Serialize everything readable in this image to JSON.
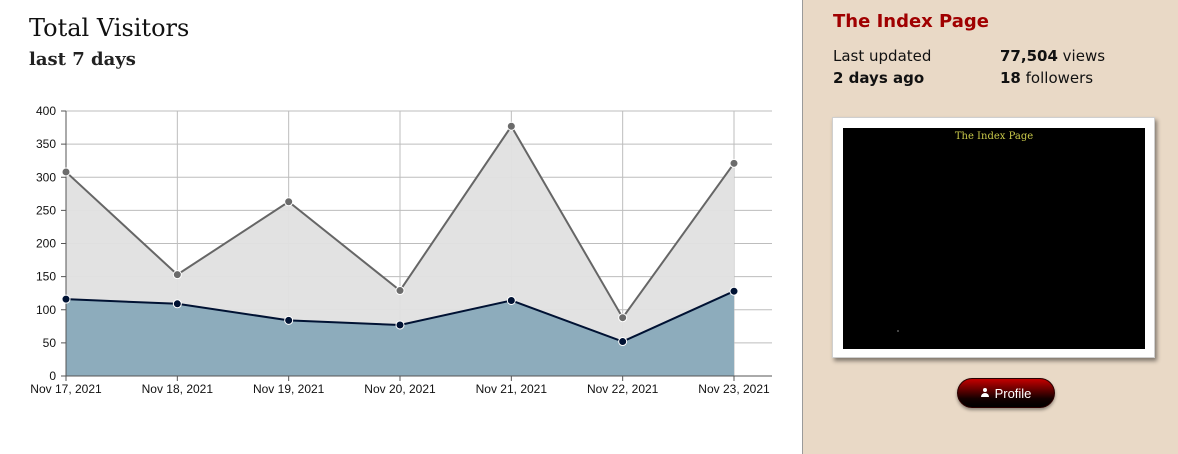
{
  "chart_data": {
    "type": "area",
    "title": "Total Visitors",
    "subtitle": "last 7 days",
    "xlabel": "",
    "ylabel": "",
    "categories": [
      "Nov 17, 2021",
      "Nov 18, 2021",
      "Nov 19, 2021",
      "Nov 20, 2021",
      "Nov 21, 2021",
      "Nov 22, 2021",
      "Nov 23, 2021"
    ],
    "series": [
      {
        "values": [
          308,
          153,
          263,
          129,
          377,
          88,
          321
        ],
        "line_color": "#666666",
        "fill_color": "#e0e0e0",
        "marker_color": "#6b6b6b"
      },
      {
        "values": [
          116,
          109,
          84,
          77,
          114,
          52,
          128
        ],
        "line_color": "#001233",
        "fill_color": "#8dacbc",
        "marker_color": "#001233"
      }
    ],
    "ylim": [
      0,
      400
    ],
    "yticks": [
      0,
      50,
      100,
      150,
      200,
      250,
      300,
      350,
      400
    ],
    "grid": true,
    "legend": "none"
  },
  "sidebar": {
    "title": "The Index Page",
    "last_updated_label": "Last updated",
    "last_updated_value": "2 days ago",
    "views_count": "77,504",
    "views_label": "views",
    "followers_count": "18",
    "followers_label": "followers",
    "preview_caption": "The Index Page",
    "profile_button_label": "Profile",
    "profile_icon": "user-icon"
  }
}
